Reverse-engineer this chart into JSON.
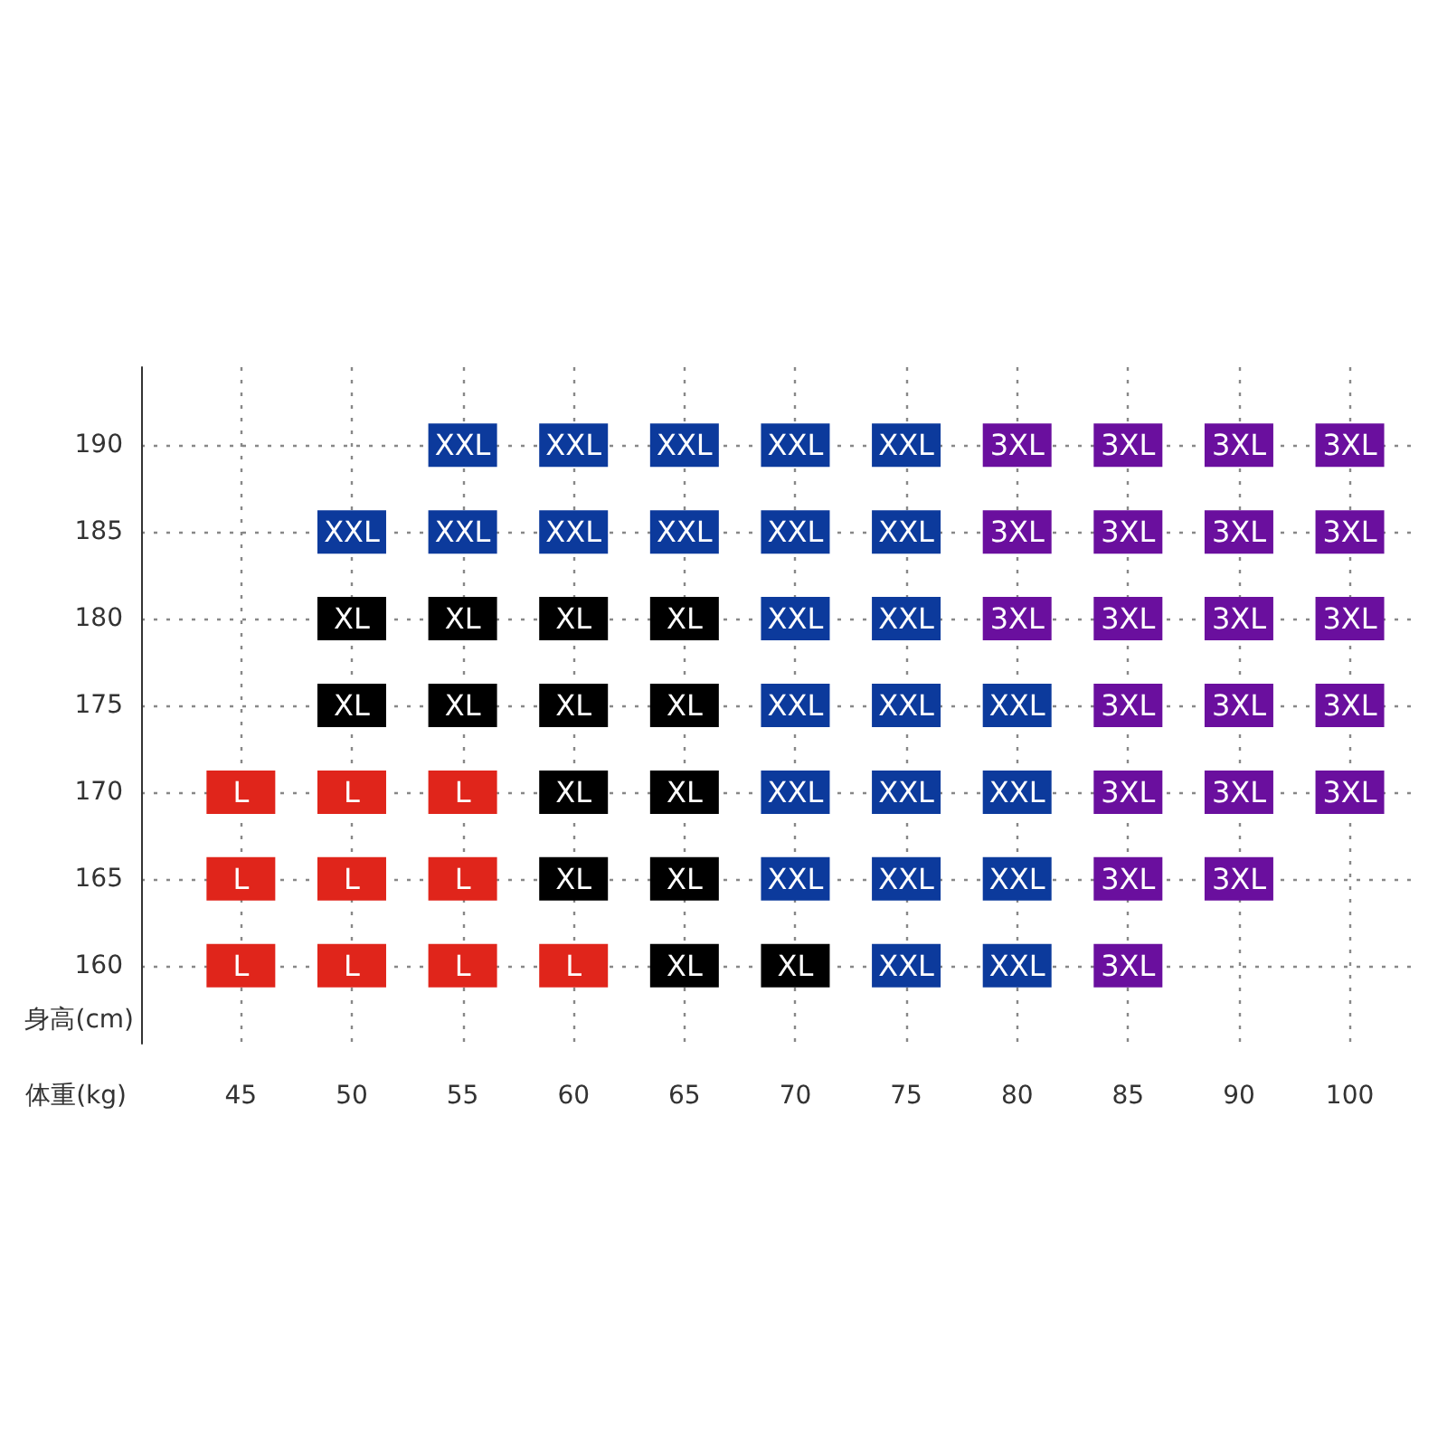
{
  "chart_data": {
    "type": "scatter",
    "xlabel": "体重(kg)",
    "ylabel": "身高(cm)",
    "categories": [
      "45",
      "50",
      "55",
      "60",
      "65",
      "70",
      "75",
      "80",
      "85",
      "90",
      "100"
    ],
    "ylim": [
      155.5,
      194.5
    ],
    "yticks": [
      160,
      165,
      170,
      175,
      180,
      185,
      190
    ],
    "series": [
      {
        "name": "L",
        "color": "#e0251b",
        "x": [
          "45",
          "45",
          "45",
          "50",
          "50",
          "50",
          "55",
          "55",
          "55",
          "60"
        ],
        "values": [
          170,
          165,
          160,
          170,
          165,
          160,
          170,
          165,
          160,
          160
        ]
      },
      {
        "name": "XL",
        "color": "#000000",
        "x": [
          "50",
          "50",
          "55",
          "55",
          "60",
          "60",
          "60",
          "60",
          "65",
          "65",
          "65",
          "65",
          "65",
          "70"
        ],
        "values": [
          180,
          175,
          180,
          175,
          180,
          175,
          170,
          165,
          180,
          175,
          170,
          165,
          160,
          160
        ]
      },
      {
        "name": "XXL",
        "color": "#0c3a9c",
        "x": [
          "50",
          "55",
          "55",
          "60",
          "60",
          "65",
          "65",
          "70",
          "70",
          "70",
          "70",
          "70",
          "70",
          "75",
          "75",
          "75",
          "75",
          "75",
          "75",
          "75",
          "80",
          "80",
          "80",
          "80"
        ],
        "values": [
          185,
          190,
          185,
          190,
          185,
          190,
          185,
          190,
          185,
          180,
          175,
          170,
          165,
          190,
          185,
          180,
          175,
          170,
          165,
          160,
          175,
          170,
          165,
          160
        ]
      },
      {
        "name": "3XL",
        "color": "#6a0f9e",
        "x": [
          "80",
          "80",
          "80",
          "85",
          "85",
          "85",
          "85",
          "85",
          "85",
          "85",
          "90",
          "90",
          "90",
          "90",
          "90",
          "90",
          "100",
          "100",
          "100",
          "100",
          "100"
        ],
        "values": [
          190,
          185,
          180,
          190,
          185,
          180,
          175,
          170,
          165,
          160,
          190,
          185,
          180,
          175,
          170,
          165,
          190,
          185,
          180,
          175,
          170
        ]
      }
    ],
    "marker": "square",
    "grid": true,
    "legend": false
  }
}
